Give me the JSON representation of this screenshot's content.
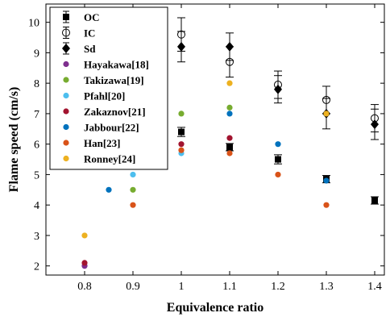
{
  "chart_data": {
    "type": "scatter",
    "xlabel": "Equivalence ratio",
    "ylabel": "Flame speed (cm/s)",
    "xlim": [
      0.72,
      1.42
    ],
    "ylim": [
      1.7,
      10.6
    ],
    "xticks": [
      0.8,
      0.9,
      1,
      1.1,
      1.2,
      1.3,
      1.4
    ],
    "xtick_labels": [
      "0.8",
      "0.9",
      "1",
      "1.1",
      "1.2",
      "1.3",
      "1.4"
    ],
    "yticks": [
      2,
      3,
      4,
      5,
      6,
      7,
      8,
      9,
      10
    ],
    "ytick_labels": [
      "2",
      "3",
      "4",
      "5",
      "6",
      "7",
      "8",
      "9",
      "10"
    ],
    "grid": false,
    "legend_position": "top-left",
    "series": [
      {
        "name": "OC",
        "marker": "square-filled",
        "color": "#000000",
        "points": [
          {
            "x": 1.0,
            "y": 6.4,
            "err": 0.15
          },
          {
            "x": 1.1,
            "y": 5.9,
            "err": 0.12
          },
          {
            "x": 1.2,
            "y": 5.5,
            "err": 0.15
          },
          {
            "x": 1.3,
            "y": 4.85,
            "err": 0.12
          },
          {
            "x": 1.4,
            "y": 4.15,
            "err": 0.12
          }
        ]
      },
      {
        "name": "IC",
        "marker": "circle-open",
        "color": "#000000",
        "points": [
          {
            "x": 1.0,
            "y": 9.6,
            "err": 0.55
          },
          {
            "x": 1.1,
            "y": 8.7,
            "err": 0.5
          },
          {
            "x": 1.2,
            "y": 7.95,
            "err": 0.45
          },
          {
            "x": 1.3,
            "y": 7.45,
            "err": 0.45
          },
          {
            "x": 1.4,
            "y": 6.85,
            "err": 0.45
          }
        ]
      },
      {
        "name": "Sd",
        "marker": "diamond-filled",
        "color": "#000000",
        "points": [
          {
            "x": 1.0,
            "y": 9.2,
            "err": 0.5
          },
          {
            "x": 1.1,
            "y": 9.2,
            "err": 0.45
          },
          {
            "x": 1.2,
            "y": 7.8,
            "err": 0.45
          },
          {
            "x": 1.3,
            "y": 7.0,
            "err": 0.5
          },
          {
            "x": 1.4,
            "y": 6.65,
            "err": 0.5
          }
        ]
      },
      {
        "name": "Hayakawa[18]",
        "marker": "dot",
        "color": "#7e2f8e",
        "points": [
          {
            "x": 0.8,
            "y": 2.0
          }
        ]
      },
      {
        "name": "Takizawa[19]",
        "marker": "dot",
        "color": "#77ac30",
        "points": [
          {
            "x": 0.9,
            "y": 4.5
          },
          {
            "x": 1.0,
            "y": 7.0
          },
          {
            "x": 1.1,
            "y": 7.2
          }
        ]
      },
      {
        "name": "Pfahl[20]",
        "marker": "dot",
        "color": "#4dbeee",
        "points": [
          {
            "x": 0.9,
            "y": 5.0
          },
          {
            "x": 1.0,
            "y": 5.7
          }
        ]
      },
      {
        "name": "Zakaznov[21]",
        "marker": "dot",
        "color": "#a2142f",
        "points": [
          {
            "x": 0.8,
            "y": 2.1
          },
          {
            "x": 1.0,
            "y": 6.0
          },
          {
            "x": 1.1,
            "y": 6.2
          }
        ]
      },
      {
        "name": "Jabbour[22]",
        "marker": "dot",
        "color": "#0072bd",
        "points": [
          {
            "x": 0.85,
            "y": 4.5
          },
          {
            "x": 1.1,
            "y": 7.0
          },
          {
            "x": 1.2,
            "y": 6.0
          },
          {
            "x": 1.3,
            "y": 4.8
          }
        ]
      },
      {
        "name": "Han[23]",
        "marker": "dot",
        "color": "#d95319",
        "points": [
          {
            "x": 0.9,
            "y": 4.0
          },
          {
            "x": 1.0,
            "y": 5.8
          },
          {
            "x": 1.1,
            "y": 5.7
          },
          {
            "x": 1.2,
            "y": 5.0
          },
          {
            "x": 1.3,
            "y": 4.0
          }
        ]
      },
      {
        "name": "Ronney[24]",
        "marker": "dot",
        "color": "#edb120",
        "points": [
          {
            "x": 0.8,
            "y": 3.0
          },
          {
            "x": 1.1,
            "y": 8.0
          },
          {
            "x": 1.3,
            "y": 7.0
          }
        ]
      }
    ]
  }
}
